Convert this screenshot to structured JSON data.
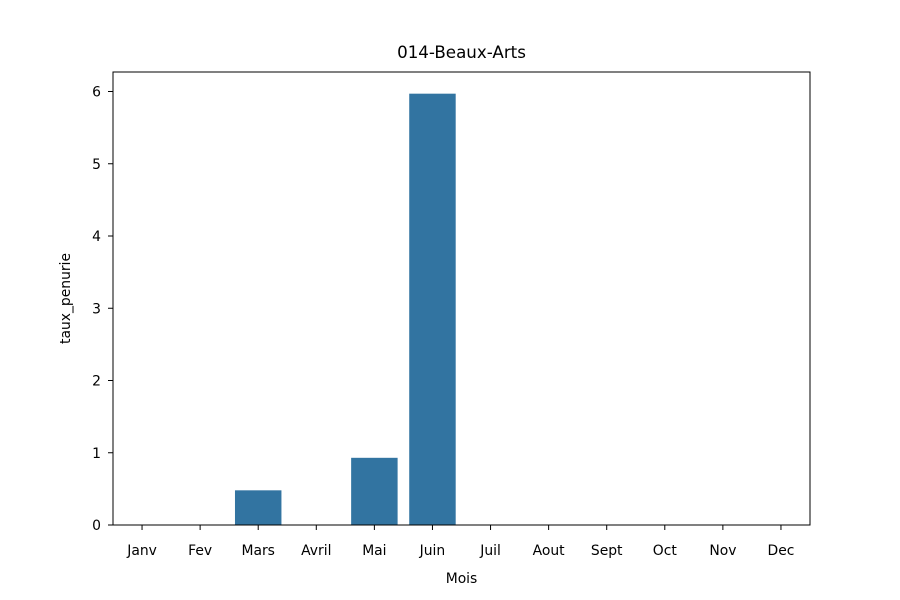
{
  "chart_data": {
    "type": "bar",
    "title": "014-Beaux-Arts",
    "xlabel": "Mois",
    "ylabel": "taux_penurie",
    "categories": [
      "Janv",
      "Fev",
      "Mars",
      "Avril",
      "Mai",
      "Juin",
      "Juil",
      "Aout",
      "Sept",
      "Oct",
      "Nov",
      "Dec"
    ],
    "values": [
      0,
      0,
      0.48,
      0,
      0.93,
      5.97,
      0,
      0,
      0,
      0,
      0,
      0
    ],
    "ylim": [
      0,
      6.27
    ],
    "yticks": [
      0,
      1,
      2,
      3,
      4,
      5,
      6
    ],
    "grid": false,
    "bar_color": "#3274a1"
  }
}
